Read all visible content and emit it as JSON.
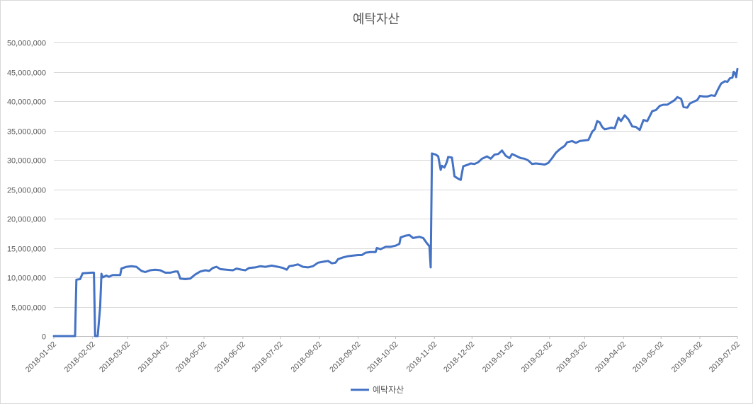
{
  "chart_data": {
    "type": "line",
    "title": "예탁자산",
    "xlabel": "",
    "ylabel": "",
    "ylim": [
      0,
      50000000
    ],
    "y_ticks": [
      0,
      5000000,
      10000000,
      15000000,
      20000000,
      25000000,
      30000000,
      35000000,
      40000000,
      45000000,
      50000000
    ],
    "y_tick_labels": [
      "0",
      "5,000,000",
      "10,000,000",
      "15,000,000",
      "20,000,000",
      "25,000,000",
      "30,000,000",
      "35,000,000",
      "40,000,000",
      "45,000,000",
      "50,000,000"
    ],
    "x_tick_labels": [
      "2018-01-02",
      "2018-02-02",
      "2018-03-02",
      "2018-04-02",
      "2018-05-02",
      "2018-06-02",
      "2018-07-02",
      "2018-08-02",
      "2018-09-02",
      "2018-10-02",
      "2018-11-02",
      "2018-12-02",
      "2019-01-02",
      "2019-02-02",
      "2019-03-02",
      "2019-04-02",
      "2019-05-02",
      "2019-06-02",
      "2019-07-02"
    ],
    "xlim": [
      "2018-01-02",
      "2019-07-02"
    ],
    "grid": "horizontal",
    "legend_position": "bottom",
    "series": [
      {
        "name": "예탁자산",
        "color": "#4472c4",
        "points": [
          [
            "2018-01-02",
            0
          ],
          [
            "2018-01-19",
            0
          ],
          [
            "2018-01-20",
            9600000
          ],
          [
            "2018-01-23",
            9700000
          ],
          [
            "2018-01-25",
            10700000
          ],
          [
            "2018-02-01",
            10800000
          ],
          [
            "2018-02-03",
            10800000
          ],
          [
            "2018-02-04",
            0
          ],
          [
            "2018-02-06",
            0
          ],
          [
            "2018-02-08",
            5000000
          ],
          [
            "2018-02-09",
            10600000
          ],
          [
            "2018-02-10",
            10000000
          ],
          [
            "2018-02-13",
            10300000
          ],
          [
            "2018-02-15",
            10100000
          ],
          [
            "2018-02-18",
            10400000
          ],
          [
            "2018-02-24",
            10400000
          ],
          [
            "2018-02-25",
            11500000
          ],
          [
            "2018-03-01",
            11800000
          ],
          [
            "2018-03-05",
            11900000
          ],
          [
            "2018-03-09",
            11800000
          ],
          [
            "2018-03-13",
            11100000
          ],
          [
            "2018-03-16",
            10900000
          ],
          [
            "2018-03-20",
            11200000
          ],
          [
            "2018-03-24",
            11300000
          ],
          [
            "2018-03-28",
            11200000
          ],
          [
            "2018-04-01",
            10800000
          ],
          [
            "2018-04-05",
            10800000
          ],
          [
            "2018-04-09",
            11000000
          ],
          [
            "2018-04-11",
            11000000
          ],
          [
            "2018-04-13",
            9800000
          ],
          [
            "2018-04-17",
            9700000
          ],
          [
            "2018-04-21",
            9800000
          ],
          [
            "2018-04-25",
            10500000
          ],
          [
            "2018-04-29",
            11000000
          ],
          [
            "2018-05-03",
            11200000
          ],
          [
            "2018-05-06",
            11100000
          ],
          [
            "2018-05-09",
            11600000
          ],
          [
            "2018-05-12",
            11800000
          ],
          [
            "2018-05-15",
            11400000
          ],
          [
            "2018-05-20",
            11300000
          ],
          [
            "2018-05-25",
            11200000
          ],
          [
            "2018-05-28",
            11500000
          ],
          [
            "2018-06-01",
            11300000
          ],
          [
            "2018-06-04",
            11200000
          ],
          [
            "2018-06-07",
            11600000
          ],
          [
            "2018-06-12",
            11700000
          ],
          [
            "2018-06-16",
            11900000
          ],
          [
            "2018-06-20",
            11800000
          ],
          [
            "2018-06-25",
            12000000
          ],
          [
            "2018-06-30",
            11800000
          ],
          [
            "2018-07-04",
            11600000
          ],
          [
            "2018-07-07",
            11300000
          ],
          [
            "2018-07-09",
            11900000
          ],
          [
            "2018-07-12",
            12000000
          ],
          [
            "2018-07-16",
            12200000
          ],
          [
            "2018-07-20",
            11800000
          ],
          [
            "2018-07-24",
            11700000
          ],
          [
            "2018-07-28",
            11900000
          ],
          [
            "2018-08-01",
            12500000
          ],
          [
            "2018-08-06",
            12700000
          ],
          [
            "2018-08-09",
            12800000
          ],
          [
            "2018-08-12",
            12400000
          ],
          [
            "2018-08-15",
            12500000
          ],
          [
            "2018-08-17",
            13100000
          ],
          [
            "2018-08-21",
            13400000
          ],
          [
            "2018-08-25",
            13600000
          ],
          [
            "2018-08-29",
            13700000
          ],
          [
            "2018-09-02",
            13800000
          ],
          [
            "2018-09-05",
            13800000
          ],
          [
            "2018-09-08",
            14200000
          ],
          [
            "2018-09-12",
            14300000
          ],
          [
            "2018-09-16",
            14300000
          ],
          [
            "2018-09-17",
            15000000
          ],
          [
            "2018-09-20",
            14800000
          ],
          [
            "2018-09-24",
            15200000
          ],
          [
            "2018-09-28",
            15200000
          ],
          [
            "2018-10-02",
            15400000
          ],
          [
            "2018-10-05",
            15700000
          ],
          [
            "2018-10-06",
            16800000
          ],
          [
            "2018-10-10",
            17100000
          ],
          [
            "2018-10-13",
            17200000
          ],
          [
            "2018-10-16",
            16700000
          ],
          [
            "2018-10-18",
            16800000
          ],
          [
            "2018-10-21",
            16900000
          ],
          [
            "2018-10-24",
            16700000
          ],
          [
            "2018-10-27",
            15800000
          ],
          [
            "2018-10-29",
            15300000
          ],
          [
            "2018-10-30",
            11700000
          ],
          [
            "2018-10-31",
            31100000
          ],
          [
            "2018-11-03",
            30900000
          ],
          [
            "2018-11-05",
            30600000
          ],
          [
            "2018-11-07",
            28300000
          ],
          [
            "2018-11-08",
            29000000
          ],
          [
            "2018-11-10",
            28700000
          ],
          [
            "2018-11-12",
            29700000
          ],
          [
            "2018-11-13",
            30500000
          ],
          [
            "2018-11-16",
            30400000
          ],
          [
            "2018-11-18",
            27200000
          ],
          [
            "2018-11-21",
            26800000
          ],
          [
            "2018-11-23",
            26600000
          ],
          [
            "2018-11-25",
            28900000
          ],
          [
            "2018-11-29",
            29200000
          ],
          [
            "2018-12-01",
            29400000
          ],
          [
            "2018-12-04",
            29300000
          ],
          [
            "2018-12-07",
            29600000
          ],
          [
            "2018-12-10",
            30200000
          ],
          [
            "2018-12-14",
            30600000
          ],
          [
            "2018-12-17",
            30200000
          ],
          [
            "2018-12-20",
            30900000
          ],
          [
            "2018-12-23",
            31000000
          ],
          [
            "2018-12-26",
            31600000
          ],
          [
            "2018-12-29",
            30700000
          ],
          [
            "2019-01-01",
            30300000
          ],
          [
            "2019-01-03",
            31000000
          ],
          [
            "2019-01-07",
            30600000
          ],
          [
            "2019-01-10",
            30300000
          ],
          [
            "2019-01-13",
            30200000
          ],
          [
            "2019-01-16",
            29900000
          ],
          [
            "2019-01-19",
            29300000
          ],
          [
            "2019-01-22",
            29400000
          ],
          [
            "2019-01-26",
            29300000
          ],
          [
            "2019-01-29",
            29200000
          ],
          [
            "2019-02-01",
            29500000
          ],
          [
            "2019-02-04",
            30300000
          ],
          [
            "2019-02-07",
            31200000
          ],
          [
            "2019-02-10",
            31800000
          ],
          [
            "2019-02-14",
            32400000
          ],
          [
            "2019-02-16",
            33000000
          ],
          [
            "2019-02-20",
            33200000
          ],
          [
            "2019-02-23",
            32900000
          ],
          [
            "2019-02-26",
            33200000
          ],
          [
            "2019-03-01",
            33300000
          ],
          [
            "2019-03-05",
            33400000
          ],
          [
            "2019-03-08",
            34800000
          ],
          [
            "2019-03-10",
            35200000
          ],
          [
            "2019-03-12",
            36600000
          ],
          [
            "2019-03-14",
            36400000
          ],
          [
            "2019-03-16",
            35600000
          ],
          [
            "2019-03-18",
            35200000
          ],
          [
            "2019-03-20",
            35300000
          ],
          [
            "2019-03-23",
            35500000
          ],
          [
            "2019-03-26",
            35400000
          ],
          [
            "2019-03-29",
            37200000
          ],
          [
            "2019-03-31",
            36600000
          ],
          [
            "2019-04-03",
            37600000
          ],
          [
            "2019-04-06",
            36900000
          ],
          [
            "2019-04-09",
            35700000
          ],
          [
            "2019-04-12",
            35600000
          ],
          [
            "2019-04-15",
            35100000
          ],
          [
            "2019-04-18",
            36800000
          ],
          [
            "2019-04-21",
            36600000
          ],
          [
            "2019-04-25",
            38300000
          ],
          [
            "2019-04-28",
            38500000
          ],
          [
            "2019-05-01",
            39200000
          ],
          [
            "2019-05-04",
            39400000
          ],
          [
            "2019-05-07",
            39400000
          ],
          [
            "2019-05-10",
            39800000
          ],
          [
            "2019-05-13",
            40200000
          ],
          [
            "2019-05-15",
            40700000
          ],
          [
            "2019-05-18",
            40400000
          ],
          [
            "2019-05-20",
            39000000
          ],
          [
            "2019-05-23",
            38900000
          ],
          [
            "2019-05-25",
            39600000
          ],
          [
            "2019-05-28",
            39900000
          ],
          [
            "2019-05-31",
            40200000
          ],
          [
            "2019-06-02",
            40900000
          ],
          [
            "2019-06-05",
            40800000
          ],
          [
            "2019-06-08",
            40800000
          ],
          [
            "2019-06-11",
            41000000
          ],
          [
            "2019-06-14",
            40900000
          ],
          [
            "2019-06-16",
            41800000
          ],
          [
            "2019-06-19",
            43000000
          ],
          [
            "2019-06-22",
            43400000
          ],
          [
            "2019-06-24",
            43300000
          ],
          [
            "2019-06-26",
            43900000
          ],
          [
            "2019-06-28",
            44000000
          ],
          [
            "2019-06-29",
            45000000
          ],
          [
            "2019-06-30",
            44800000
          ],
          [
            "2019-07-01",
            44100000
          ],
          [
            "2019-07-02",
            45500000
          ]
        ]
      }
    ]
  }
}
